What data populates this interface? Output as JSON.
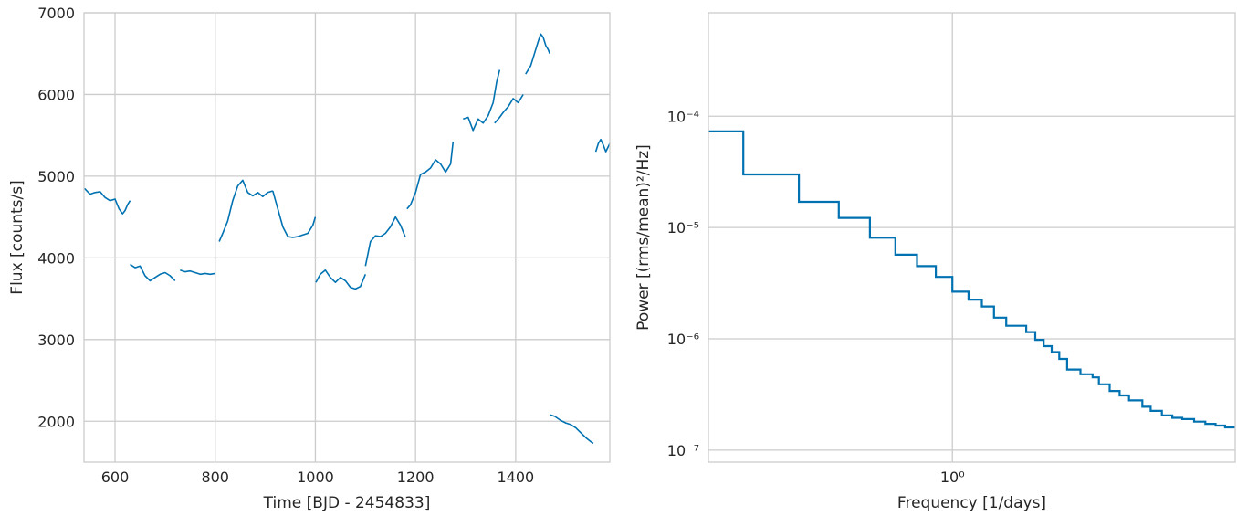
{
  "chart_data": [
    {
      "type": "line",
      "xlabel": "Time [BJD - 2454833]",
      "ylabel": "Flux [counts/s]",
      "xlim": [
        538,
        1588
      ],
      "ylim": [
        1500,
        7000
      ],
      "xticks": [
        600,
        800,
        1000,
        1200,
        1400
      ],
      "yticks": [
        2000,
        3000,
        4000,
        5000,
        6000,
        7000
      ],
      "grid": true,
      "color": "#0072b2",
      "segments": [
        {
          "x": [
            539,
            550,
            560,
            570,
            580,
            590,
            600,
            608,
            615,
            620,
            625,
            630
          ],
          "y": [
            4850,
            4780,
            4800,
            4810,
            4740,
            4700,
            4720,
            4600,
            4540,
            4580,
            4650,
            4700
          ]
        },
        {
          "x": [
            630,
            640,
            650,
            660,
            670,
            680,
            690,
            700,
            710,
            720
          ],
          "y": [
            3920,
            3880,
            3900,
            3780,
            3720,
            3760,
            3800,
            3820,
            3780,
            3720
          ]
        },
        {
          "x": [
            730,
            740,
            750,
            760,
            770,
            780,
            790,
            800
          ],
          "y": [
            3850,
            3830,
            3840,
            3820,
            3800,
            3810,
            3800,
            3810
          ]
        },
        {
          "x": [
            808,
            815,
            825,
            835,
            845,
            855,
            865,
            875,
            885,
            895,
            905,
            915
          ],
          "y": [
            4200,
            4300,
            4450,
            4700,
            4880,
            4950,
            4800,
            4760,
            4800,
            4750,
            4800,
            4820
          ]
        },
        {
          "x": [
            915,
            925,
            935,
            945,
            955,
            965,
            975,
            985,
            995,
            1000
          ],
          "y": [
            4820,
            4600,
            4380,
            4260,
            4250,
            4260,
            4280,
            4300,
            4400,
            4500
          ]
        },
        {
          "x": [
            1001,
            1010,
            1020,
            1030,
            1040,
            1050,
            1060,
            1070,
            1080,
            1090,
            1100
          ],
          "y": [
            3700,
            3800,
            3850,
            3760,
            3700,
            3760,
            3720,
            3640,
            3620,
            3650,
            3800
          ]
        },
        {
          "x": [
            1100,
            1110,
            1120,
            1130,
            1140,
            1150,
            1160,
            1170,
            1180
          ],
          "y": [
            3900,
            4200,
            4270,
            4260,
            4300,
            4380,
            4500,
            4400,
            4250
          ]
        },
        {
          "x": [
            1183,
            1190,
            1200,
            1210,
            1220,
            1230,
            1240,
            1250,
            1260,
            1270,
            1275
          ],
          "y": [
            4600,
            4650,
            4800,
            5020,
            5050,
            5100,
            5200,
            5150,
            5050,
            5150,
            5420
          ]
        },
        {
          "x": [
            1295,
            1305,
            1315,
            1325,
            1335,
            1345,
            1355,
            1362,
            1368
          ],
          "y": [
            5700,
            5720,
            5560,
            5700,
            5650,
            5740,
            5900,
            6150,
            6300
          ]
        },
        {
          "x": [
            1358,
            1368,
            1375,
            1385,
            1395,
            1405,
            1415
          ],
          "y": [
            5650,
            5720,
            5780,
            5850,
            5950,
            5900,
            6000
          ]
        },
        {
          "x": [
            1420,
            1430,
            1440,
            1445,
            1450,
            1455,
            1460,
            1465,
            1468
          ],
          "y": [
            6250,
            6350,
            6550,
            6650,
            6740,
            6700,
            6600,
            6550,
            6500
          ]
        },
        {
          "x": [
            1468,
            1478,
            1490,
            1500,
            1510,
            1520,
            1530,
            1540,
            1550,
            1555
          ],
          "y": [
            2080,
            2060,
            2010,
            1980,
            1960,
            1920,
            1860,
            1800,
            1750,
            1730
          ]
        },
        {
          "x": [
            1560,
            1565,
            1570,
            1575,
            1580,
            1588
          ],
          "y": [
            5300,
            5400,
            5450,
            5380,
            5300,
            5400
          ]
        }
      ]
    },
    {
      "type": "line",
      "step": true,
      "scale": "log-log",
      "xlabel": "Frequency [1/days]",
      "ylabel": "Power [(rms/mean)²/Hz]",
      "xlim": [
        0.18,
        7.3
      ],
      "ylim": [
        7.8e-08,
        0.00085
      ],
      "xticks": [
        {
          "value": 1,
          "label": "10⁰"
        }
      ],
      "yticks": [
        {
          "value": 1e-07,
          "label": "10⁻⁷"
        },
        {
          "value": 1e-06,
          "label": "10⁻⁶"
        },
        {
          "value": 1e-05,
          "label": "10⁻⁵"
        },
        {
          "value": 0.0001,
          "label": "10⁻⁴"
        }
      ],
      "grid": true,
      "color": "#0072b2",
      "x": [
        0.18,
        0.23,
        0.34,
        0.45,
        0.56,
        0.67,
        0.78,
        0.89,
        1.0,
        1.12,
        1.23,
        1.34,
        1.46,
        1.68,
        1.79,
        1.9,
        2.01,
        2.12,
        2.24,
        2.46,
        2.68,
        2.8,
        3.02,
        3.24,
        3.46,
        3.8,
        4.03,
        4.36,
        4.69,
        5.03,
        5.47,
        5.92,
        6.36,
        6.8,
        7.3
      ],
      "values": [
        7.3e-05,
        3e-05,
        1.7e-05,
        1.22e-05,
        8.1e-06,
        5.7e-06,
        4.5e-06,
        3.6e-06,
        2.65e-06,
        2.25e-06,
        1.95e-06,
        1.55e-06,
        1.31e-06,
        1.15e-06,
        9.8e-07,
        8.6e-07,
        7.6e-07,
        6.6e-07,
        5.3e-07,
        4.8e-07,
        4.5e-07,
        3.9e-07,
        3.4e-07,
        3.1e-07,
        2.8e-07,
        2.45e-07,
        2.25e-07,
        2.05e-07,
        1.95e-07,
        1.9e-07,
        1.8e-07,
        1.72e-07,
        1.66e-07,
        1.6e-07,
        1.55e-07
      ]
    }
  ]
}
